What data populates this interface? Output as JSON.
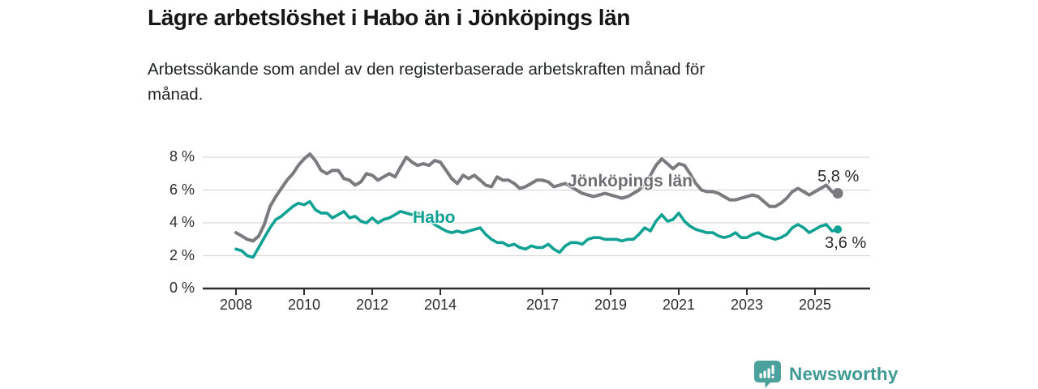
{
  "header": {
    "title": "Lägre arbetslöshet i Habo än i Jönköpings län",
    "subtitle": "Arbetssökande som andel av den registerbaserade arbetskraften månad för månad."
  },
  "footer": {
    "brand": "Newsworthy",
    "logo_icon": "newsworthy-bars-speech-bubble-icon",
    "brand_color": "#3f9a94",
    "icon_color": "#4ba29c"
  },
  "chart_data": {
    "type": "line",
    "title": "Lägre arbetslöshet i Habo än i Jönköpings län",
    "subtitle": "Arbetssökande som andel av den registerbaserade arbetskraften månad för månad.",
    "xlabel": "",
    "ylabel": "",
    "ylim": [
      0,
      8
    ],
    "xlim": [
      2007.0,
      2026.6
    ],
    "grid": true,
    "legend_position": "inline-labels",
    "y_ticks": [
      {
        "value": 0,
        "label": "0 %"
      },
      {
        "value": 2,
        "label": "2 %"
      },
      {
        "value": 4,
        "label": "4 %"
      },
      {
        "value": 6,
        "label": "6 %"
      },
      {
        "value": 8,
        "label": "8 %"
      }
    ],
    "x_ticks": [
      {
        "value": 2008,
        "label": "2008"
      },
      {
        "value": 2010,
        "label": "2010"
      },
      {
        "value": 2012,
        "label": "2012"
      },
      {
        "value": 2014,
        "label": "2014"
      },
      {
        "value": 2017,
        "label": "2017"
      },
      {
        "value": 2019,
        "label": "2019"
      },
      {
        "value": 2021,
        "label": "2021"
      },
      {
        "value": 2023,
        "label": "2023"
      },
      {
        "value": 2025,
        "label": "2025"
      }
    ],
    "x": [
      2008,
      2008.17,
      2008.33,
      2008.5,
      2008.67,
      2008.83,
      2009,
      2009.17,
      2009.33,
      2009.5,
      2009.67,
      2009.83,
      2010,
      2010.17,
      2010.33,
      2010.5,
      2010.67,
      2010.83,
      2011,
      2011.17,
      2011.33,
      2011.5,
      2011.67,
      2011.83,
      2012,
      2012.17,
      2012.33,
      2012.5,
      2012.67,
      2012.83,
      2013,
      2013.17,
      2013.33,
      2013.5,
      2013.67,
      2013.83,
      2014,
      2014.17,
      2014.33,
      2014.5,
      2014.67,
      2014.83,
      2015,
      2015.17,
      2015.33,
      2015.5,
      2015.67,
      2015.83,
      2016,
      2016.17,
      2016.33,
      2016.5,
      2016.67,
      2016.83,
      2017,
      2017.17,
      2017.33,
      2017.5,
      2017.67,
      2017.83,
      2018,
      2018.17,
      2018.33,
      2018.5,
      2018.67,
      2018.83,
      2019,
      2019.17,
      2019.33,
      2019.5,
      2019.67,
      2019.83,
      2020,
      2020.17,
      2020.33,
      2020.5,
      2020.67,
      2020.83,
      2021,
      2021.17,
      2021.33,
      2021.5,
      2021.67,
      2021.83,
      2022,
      2022.17,
      2022.33,
      2022.5,
      2022.67,
      2022.83,
      2023,
      2023.17,
      2023.33,
      2023.5,
      2023.67,
      2023.83,
      2024,
      2024.17,
      2024.33,
      2024.5,
      2024.67,
      2024.83,
      2025,
      2025.17,
      2025.33,
      2025.5,
      2025.67
    ],
    "series": [
      {
        "name": "Jönköpings län",
        "color": "#7a7a7f",
        "label_color": "#6e6e73",
        "end_label": "5,8 %",
        "end_value": 5.8,
        "values": [
          3.4,
          3.2,
          3.0,
          2.9,
          3.2,
          3.9,
          5.0,
          5.6,
          6.1,
          6.6,
          7.0,
          7.5,
          7.9,
          8.2,
          7.8,
          7.2,
          7.0,
          7.2,
          7.2,
          6.7,
          6.6,
          6.3,
          6.5,
          7.0,
          6.9,
          6.6,
          6.8,
          7.0,
          6.8,
          7.4,
          8.0,
          7.7,
          7.5,
          7.6,
          7.5,
          7.8,
          7.7,
          7.2,
          6.7,
          6.4,
          6.9,
          6.7,
          6.9,
          6.6,
          6.3,
          6.2,
          6.8,
          6.6,
          6.6,
          6.4,
          6.1,
          6.2,
          6.4,
          6.6,
          6.6,
          6.5,
          6.2,
          6.3,
          6.4,
          6.2,
          6.0,
          5.8,
          5.7,
          5.6,
          5.7,
          5.8,
          5.7,
          5.6,
          5.5,
          5.6,
          5.8,
          6.0,
          6.4,
          6.9,
          7.5,
          7.9,
          7.6,
          7.3,
          7.6,
          7.5,
          7.0,
          6.4,
          6.0,
          5.9,
          5.9,
          5.8,
          5.6,
          5.4,
          5.4,
          5.5,
          5.6,
          5.7,
          5.6,
          5.3,
          5.0,
          5.0,
          5.2,
          5.5,
          5.9,
          6.1,
          5.9,
          5.7,
          5.9,
          6.1,
          6.3,
          5.9,
          5.8
        ]
      },
      {
        "name": "Habo",
        "color": "#0fa193",
        "label_color": "#0fa193",
        "end_label": "3,6 %",
        "end_value": 3.6,
        "values": [
          2.4,
          2.3,
          2.0,
          1.9,
          2.5,
          3.1,
          3.7,
          4.2,
          4.4,
          4.7,
          5.0,
          5.2,
          5.1,
          5.3,
          4.8,
          4.6,
          4.6,
          4.3,
          4.5,
          4.7,
          4.3,
          4.4,
          4.1,
          4.0,
          4.3,
          4.0,
          4.2,
          4.3,
          4.5,
          4.7,
          4.6,
          4.5,
          4.6,
          4.4,
          4.2,
          3.9,
          3.7,
          3.5,
          3.4,
          3.5,
          3.4,
          3.5,
          3.6,
          3.7,
          3.3,
          3.0,
          2.8,
          2.8,
          2.6,
          2.7,
          2.5,
          2.4,
          2.6,
          2.5,
          2.5,
          2.7,
          2.4,
          2.2,
          2.6,
          2.8,
          2.8,
          2.7,
          3.0,
          3.1,
          3.1,
          3.0,
          3.0,
          3.0,
          2.9,
          3.0,
          3.0,
          3.3,
          3.7,
          3.5,
          4.1,
          4.5,
          4.1,
          4.2,
          4.6,
          4.1,
          3.8,
          3.6,
          3.5,
          3.4,
          3.4,
          3.2,
          3.1,
          3.2,
          3.4,
          3.1,
          3.1,
          3.3,
          3.4,
          3.2,
          3.1,
          3.0,
          3.1,
          3.3,
          3.7,
          3.9,
          3.7,
          3.4,
          3.6,
          3.8,
          3.9,
          3.5,
          3.6
        ]
      }
    ]
  }
}
